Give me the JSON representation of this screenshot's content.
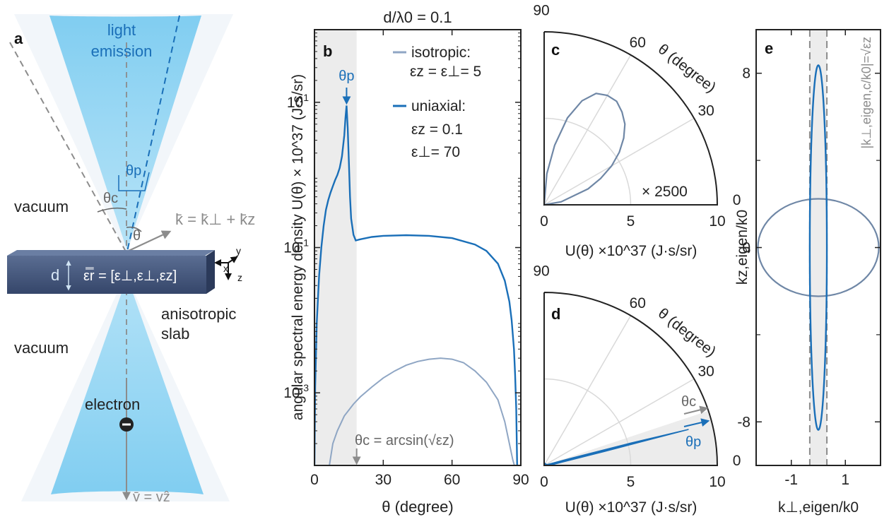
{
  "colors": {
    "uniaxial": "#1a6fb8",
    "isotropic": "#7f97b4",
    "cone": "#6cc6ef",
    "slab": "#3d5073",
    "gray": "#8c8c8c",
    "shade": "#ececec",
    "grid": "#d9d9d9",
    "axis": "#222222"
  },
  "panel_a": {
    "label": "a",
    "light_emission_1": "light",
    "light_emission_2": "emission",
    "theta_p": "θp",
    "theta_c": "θc",
    "theta": "θ",
    "vacuum_top": "vacuum",
    "vacuum_bottom": "vacuum",
    "k_vector": "k̄ = k̄⊥ + k̄z",
    "d": "d",
    "epsilon": "ε̿r = [ε⊥,ε⊥,εz]",
    "slab_1": "anisotropic",
    "slab_2": "slab",
    "electron": "electron",
    "velocity": "v̄ = vẑ",
    "axis_x": "x",
    "axis_y": "y",
    "axis_z": "z"
  },
  "chart_data": [
    {
      "panel": "b",
      "type": "line",
      "title": "d/λ0 = 0.1",
      "xlabel": "θ (degree)",
      "ylabel": "angular spectral energy density U(θ) × 10^37 (J·s/sr)",
      "xlim": [
        0,
        90
      ],
      "ylim_log10": [
        -4,
        2
      ],
      "xticks": [
        "0",
        "30",
        "60",
        "90"
      ],
      "yticks": [
        "10-3",
        "10-1",
        "101"
      ],
      "yscale": "log",
      "shaded_region": [
        0,
        18.4
      ],
      "annotation_peak": "θp",
      "annotation_critical": "θc = arcsin(√εz)",
      "legend": {
        "iso_name": "isotropic:",
        "iso_params": "εz = ε⊥= 5",
        "uni_name": "uniaxial:",
        "uni_params_1": "εz = 0.1",
        "uni_params_2": "ε⊥= 70"
      },
      "series": [
        {
          "name": "uniaxial",
          "x": [
            0,
            0.3,
            1,
            2,
            3,
            4,
            5,
            6,
            7,
            8,
            9,
            10,
            11,
            12,
            13,
            13.5,
            14,
            14.5,
            15,
            15.5,
            16,
            17,
            18,
            20,
            25,
            30,
            40,
            50,
            60,
            70,
            75,
            80,
            83,
            85,
            86,
            87,
            87.5,
            88,
            88.4
          ],
          "y": [
            0.0001,
            0.0012,
            0.009,
            0.04,
            0.1,
            0.2,
            0.33,
            0.45,
            0.57,
            0.7,
            0.85,
            1.0,
            1.25,
            1.8,
            3.5,
            6.0,
            9.0,
            4.5,
            1.5,
            0.5,
            0.25,
            0.15,
            0.125,
            0.13,
            0.14,
            0.145,
            0.148,
            0.145,
            0.135,
            0.11,
            0.09,
            0.06,
            0.035,
            0.018,
            0.01,
            0.004,
            0.0018,
            0.0006,
            0.0001
          ]
        },
        {
          "name": "isotropic",
          "x": [
            6.5,
            8,
            10,
            13,
            17,
            20,
            25,
            30,
            35,
            40,
            45,
            50,
            55,
            60,
            65,
            70,
            75,
            80,
            83,
            85,
            86.5,
            87.2
          ],
          "y": [
            0.0001,
            0.0002,
            0.0003,
            0.00048,
            0.0007,
            0.00088,
            0.0012,
            0.0016,
            0.002,
            0.0024,
            0.0027,
            0.0029,
            0.003,
            0.0029,
            0.0026,
            0.002,
            0.0014,
            0.0008,
            0.0004,
            0.0002,
            0.00012,
            0.0001
          ]
        }
      ]
    },
    {
      "panel": "c",
      "type": "scatter",
      "polar": true,
      "xlabel": "U(θ) ×10^37 (J·s/sr)",
      "angle_label": "θ (degree)",
      "rlim": [
        0,
        10
      ],
      "rticks": [
        "0",
        "5",
        "10"
      ],
      "angle_ticks": [
        "0",
        "30",
        "60",
        "90"
      ],
      "scale_note": "× 2500",
      "series": [
        {
          "name": "isotropic",
          "theta_deg": [
            0,
            10,
            20,
            25,
            30,
            35,
            40,
            45,
            50,
            55,
            60,
            65,
            70,
            75,
            80,
            85,
            90
          ],
          "r": [
            0,
            1.0,
            2.7,
            3.6,
            4.5,
            5.3,
            6.0,
            6.6,
            7.0,
            7.3,
            7.3,
            7.1,
            6.4,
            5.2,
            3.5,
            1.8,
            0
          ]
        }
      ]
    },
    {
      "panel": "d",
      "type": "scatter",
      "polar": true,
      "xlabel": "U(θ) ×10^37 (J·s/sr)",
      "angle_label": "θ (degree)",
      "rlim": [
        0,
        10
      ],
      "rticks": [
        "0",
        "5",
        "10"
      ],
      "angle_ticks": [
        "0",
        "30",
        "60",
        "90"
      ],
      "shaded_region_deg": [
        0,
        18.4
      ],
      "annotation_critical": "θc",
      "annotation_peak": "θp",
      "series": [
        {
          "name": "uniaxial",
          "theta_deg": [
            0,
            2,
            6,
            10,
            13,
            14,
            14.5,
            15,
            16,
            18,
            30,
            60,
            90
          ],
          "r": [
            0,
            0.12,
            0.5,
            1.0,
            3.5,
            8.6,
            5.0,
            1.5,
            0.25,
            0.12,
            0.14,
            0.13,
            0
          ]
        }
      ]
    },
    {
      "panel": "e",
      "type": "scatter",
      "xlabel": "k⊥,eigen/k0",
      "ylabel": "kz,eigen/k0",
      "xlim": [
        -2.3,
        2.3
      ],
      "ylim": [
        -10,
        10
      ],
      "xticks": [
        "-1",
        "1"
      ],
      "yticks": [
        "8",
        "0",
        "-8"
      ],
      "dashed_label": "|k⊥,eigen,c/k0|=√εz",
      "dashed_x": [
        -0.316,
        0.316
      ],
      "series": [
        {
          "name": "isotropic",
          "shape": "ellipse",
          "semi_x": 2.236,
          "semi_y": 2.236
        },
        {
          "name": "uniaxial",
          "shape": "ellipse",
          "semi_x": 0.316,
          "semi_y": 8.37
        }
      ]
    }
  ]
}
